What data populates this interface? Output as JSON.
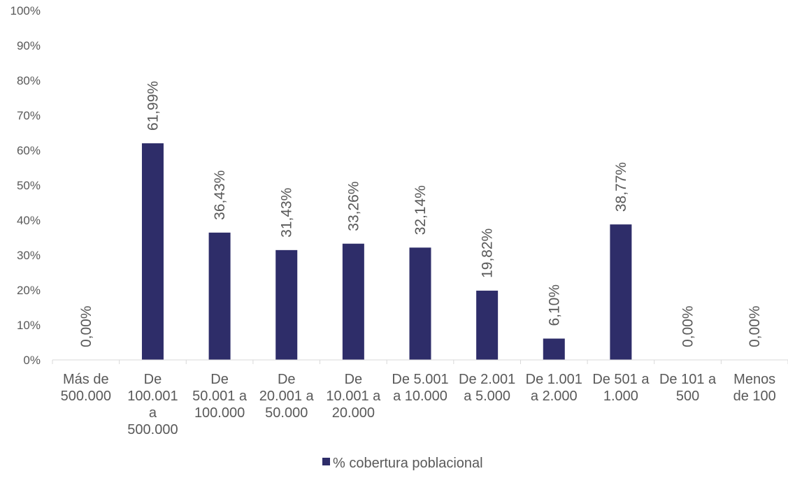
{
  "chart_data": {
    "type": "bar",
    "title": "",
    "xlabel": "",
    "ylabel": "",
    "ylim": [
      0,
      100
    ],
    "yticks": [
      "0%",
      "10%",
      "20%",
      "30%",
      "40%",
      "50%",
      "60%",
      "70%",
      "80%",
      "90%",
      "100%"
    ],
    "categories": [
      [
        "Más de",
        "500.000"
      ],
      [
        "De",
        "100.001",
        "a",
        "500.000"
      ],
      [
        "De",
        "50.001 a",
        "100.000"
      ],
      [
        "De",
        "20.001 a",
        "50.000"
      ],
      [
        "De",
        "10.001 a",
        "20.000"
      ],
      [
        "De 5.001",
        "a 10.000"
      ],
      [
        "De 2.001",
        "a 5.000"
      ],
      [
        "De 1.001",
        "a 2.000"
      ],
      [
        "De 501 a",
        "1.000"
      ],
      [
        "De 101 a",
        "500"
      ],
      [
        "Menos",
        "de 100"
      ]
    ],
    "series": [
      {
        "name": "% cobertura poblacional",
        "color": "#2e2d69",
        "values": [
          0.0,
          61.99,
          36.43,
          31.43,
          33.26,
          32.14,
          19.82,
          6.1,
          38.77,
          0.0,
          0.0
        ],
        "labels": [
          "0,00%",
          "61,99%",
          "36,43%",
          "31,43%",
          "33,26%",
          "32,14%",
          "19,82%",
          "6,10%",
          "38,77%",
          "0,00%",
          "0,00%"
        ]
      }
    ],
    "grid": false,
    "legend_position": "bottom"
  }
}
